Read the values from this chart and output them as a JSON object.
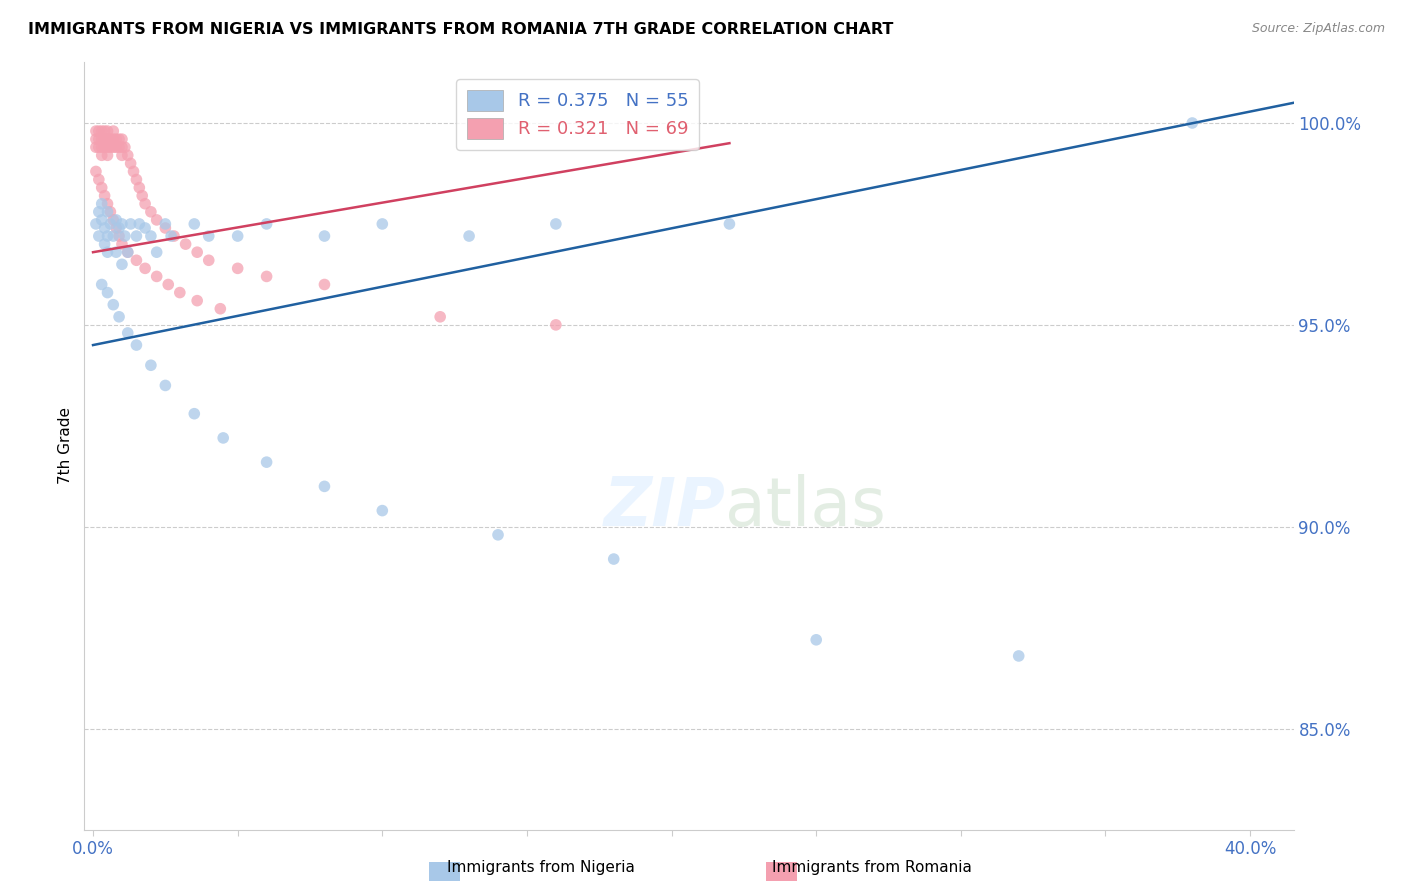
{
  "title": "IMMIGRANTS FROM NIGERIA VS IMMIGRANTS FROM ROMANIA 7TH GRADE CORRELATION CHART",
  "source": "Source: ZipAtlas.com",
  "ylabel": "7th Grade",
  "ytick_labels": [
    "100.0%",
    "95.0%",
    "90.0%",
    "85.0%"
  ],
  "ytick_values": [
    1.0,
    0.95,
    0.9,
    0.85
  ],
  "xlim": [
    -0.003,
    0.415
  ],
  "ylim": [
    0.825,
    1.015
  ],
  "color_nigeria": "#a8c8e8",
  "color_romania": "#f4a0b0",
  "trendline_nigeria_color": "#2060a0",
  "trendline_romania_color": "#d04060",
  "nigeria_x": [
    0.001,
    0.002,
    0.002,
    0.003,
    0.003,
    0.004,
    0.004,
    0.005,
    0.005,
    0.005,
    0.006,
    0.007,
    0.008,
    0.008,
    0.009,
    0.01,
    0.01,
    0.011,
    0.012,
    0.013,
    0.015,
    0.016,
    0.018,
    0.02,
    0.022,
    0.025,
    0.027,
    0.035,
    0.04,
    0.05,
    0.06,
    0.08,
    0.1,
    0.13,
    0.16,
    0.22,
    0.38,
    0.003,
    0.005,
    0.007,
    0.009,
    0.012,
    0.015,
    0.02,
    0.025,
    0.035,
    0.045,
    0.06,
    0.08,
    0.1,
    0.14,
    0.18,
    0.25,
    0.32
  ],
  "nigeria_y": [
    0.975,
    0.978,
    0.972,
    0.98,
    0.976,
    0.974,
    0.97,
    0.978,
    0.972,
    0.968,
    0.975,
    0.972,
    0.976,
    0.968,
    0.974,
    0.975,
    0.965,
    0.972,
    0.968,
    0.975,
    0.972,
    0.975,
    0.974,
    0.972,
    0.968,
    0.975,
    0.972,
    0.975,
    0.972,
    0.972,
    0.975,
    0.972,
    0.975,
    0.972,
    0.975,
    0.975,
    1.0,
    0.96,
    0.958,
    0.955,
    0.952,
    0.948,
    0.945,
    0.94,
    0.935,
    0.928,
    0.922,
    0.916,
    0.91,
    0.904,
    0.898,
    0.892,
    0.872,
    0.868
  ],
  "romania_x": [
    0.001,
    0.001,
    0.001,
    0.002,
    0.002,
    0.002,
    0.003,
    0.003,
    0.003,
    0.003,
    0.004,
    0.004,
    0.004,
    0.005,
    0.005,
    0.005,
    0.005,
    0.006,
    0.006,
    0.007,
    0.007,
    0.007,
    0.008,
    0.008,
    0.009,
    0.009,
    0.01,
    0.01,
    0.01,
    0.011,
    0.012,
    0.013,
    0.014,
    0.015,
    0.016,
    0.017,
    0.018,
    0.02,
    0.022,
    0.025,
    0.028,
    0.032,
    0.036,
    0.04,
    0.05,
    0.06,
    0.08,
    0.001,
    0.002,
    0.003,
    0.004,
    0.005,
    0.006,
    0.007,
    0.008,
    0.009,
    0.01,
    0.012,
    0.015,
    0.018,
    0.022,
    0.026,
    0.03,
    0.036,
    0.044,
    0.12,
    0.16
  ],
  "romania_y": [
    0.998,
    0.996,
    0.994,
    0.998,
    0.996,
    0.994,
    0.998,
    0.996,
    0.994,
    0.992,
    0.998,
    0.996,
    0.994,
    0.998,
    0.996,
    0.994,
    0.992,
    0.996,
    0.994,
    0.998,
    0.996,
    0.994,
    0.996,
    0.994,
    0.996,
    0.994,
    0.996,
    0.994,
    0.992,
    0.994,
    0.992,
    0.99,
    0.988,
    0.986,
    0.984,
    0.982,
    0.98,
    0.978,
    0.976,
    0.974,
    0.972,
    0.97,
    0.968,
    0.966,
    0.964,
    0.962,
    0.96,
    0.988,
    0.986,
    0.984,
    0.982,
    0.98,
    0.978,
    0.976,
    0.974,
    0.972,
    0.97,
    0.968,
    0.966,
    0.964,
    0.962,
    0.96,
    0.958,
    0.956,
    0.954,
    0.952,
    0.95
  ]
}
